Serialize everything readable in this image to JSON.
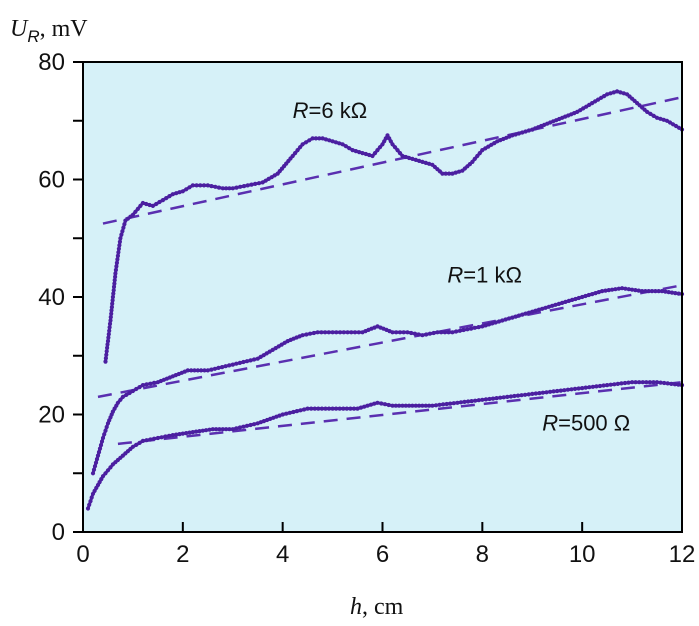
{
  "chart_data": {
    "type": "line",
    "xlabel": {
      "italic": "h",
      "rest": ", cm"
    },
    "ylabel": {
      "italic": "U",
      "sub": "R",
      "rest": ", mV"
    },
    "xlim": [
      0,
      12
    ],
    "ylim": [
      0,
      80
    ],
    "xticks": [
      0,
      2,
      4,
      6,
      8,
      10,
      12
    ],
    "yticks": [
      0,
      20,
      40,
      60,
      80
    ],
    "grid": false,
    "background": "#d6f1f8",
    "series_color": "#4b1fa0",
    "fit_color": "#5a2fb0",
    "series": [
      {
        "name": "R=6 kΩ",
        "label_parts": {
          "italic": "R",
          "rest": "=6 kΩ"
        },
        "label_at": {
          "x": 4.2,
          "y": 70.5
        },
        "x": [
          0.45,
          0.55,
          0.65,
          0.75,
          0.85,
          1.0,
          1.2,
          1.4,
          1.6,
          1.8,
          2.0,
          2.2,
          2.5,
          2.8,
          3.0,
          3.3,
          3.6,
          3.9,
          4.2,
          4.4,
          4.6,
          4.8,
          5.0,
          5.2,
          5.4,
          5.6,
          5.8,
          6.0,
          6.1,
          6.2,
          6.4,
          6.6,
          6.8,
          7.0,
          7.2,
          7.4,
          7.6,
          7.8,
          8.0,
          8.3,
          8.6,
          9.0,
          9.3,
          9.6,
          9.9,
          10.2,
          10.5,
          10.7,
          10.9,
          11.1,
          11.3,
          11.5,
          11.7,
          12.0
        ],
        "y": [
          29,
          36,
          44,
          50,
          53,
          54,
          56,
          55.5,
          56.5,
          57.5,
          58,
          59,
          59,
          58.5,
          58.5,
          59,
          59.5,
          61,
          64,
          66,
          67,
          67,
          66.5,
          66,
          65,
          64.5,
          64,
          66,
          67.5,
          66,
          64,
          63.5,
          63,
          62.5,
          61,
          61,
          61.5,
          63,
          65,
          66.5,
          67.5,
          68.5,
          69.5,
          70.5,
          71.5,
          73,
          74.5,
          75,
          74.5,
          73,
          71.5,
          70.5,
          70,
          68.5
        ]
      },
      {
        "name": "R=1 kΩ",
        "label_parts": {
          "italic": "R",
          "rest": "=1 kΩ"
        },
        "label_at": {
          "x": 7.3,
          "y": 42.5
        },
        "x": [
          0.2,
          0.3,
          0.4,
          0.5,
          0.6,
          0.7,
          0.8,
          1.0,
          1.2,
          1.5,
          1.8,
          2.1,
          2.5,
          3.0,
          3.5,
          3.8,
          4.1,
          4.4,
          4.7,
          5.0,
          5.3,
          5.6,
          5.9,
          6.2,
          6.5,
          6.8,
          7.1,
          7.4,
          7.7,
          8.0,
          8.4,
          8.8,
          9.2,
          9.6,
          10.0,
          10.4,
          10.8,
          11.2,
          11.6,
          12.0
        ],
        "y": [
          10,
          13,
          16,
          18.5,
          20.5,
          22,
          23,
          24,
          25,
          25.5,
          26.5,
          27.5,
          27.5,
          28.5,
          29.5,
          31,
          32.5,
          33.5,
          34,
          34,
          34,
          34,
          35,
          34,
          34,
          33.5,
          34,
          34,
          34.5,
          35,
          36,
          37,
          38,
          39,
          40,
          41,
          41.5,
          41,
          41,
          40.5
        ]
      },
      {
        "name": "R=500 Ω",
        "label_parts": {
          "italic": "R",
          "rest": "=500 Ω"
        },
        "label_at": {
          "x": 9.2,
          "y": 17.3
        },
        "x": [
          0.1,
          0.2,
          0.3,
          0.4,
          0.5,
          0.6,
          0.8,
          1.0,
          1.2,
          1.5,
          1.8,
          2.2,
          2.6,
          3.0,
          3.5,
          4.0,
          4.5,
          5.0,
          5.5,
          5.9,
          6.2,
          6.6,
          7.0,
          7.5,
          8.0,
          8.5,
          9.0,
          9.5,
          10.0,
          10.5,
          11.0,
          11.5,
          12.0
        ],
        "y": [
          4,
          6.5,
          8,
          9.5,
          10.5,
          11.5,
          13,
          14.5,
          15.5,
          16,
          16.5,
          17,
          17.5,
          17.5,
          18.5,
          20,
          21,
          21,
          21,
          22,
          21.5,
          21.5,
          21.5,
          22,
          22.5,
          23,
          23.5,
          24,
          24.5,
          25,
          25.5,
          25.5,
          25
        ]
      }
    ],
    "fits": [
      {
        "series": "R=6 kΩ",
        "x": [
          0.4,
          12.0
        ],
        "y": [
          52.5,
          74
        ]
      },
      {
        "series": "R=1 kΩ",
        "x": [
          0.3,
          12.0
        ],
        "y": [
          23,
          42
        ]
      },
      {
        "series": "R=500 Ω",
        "x": [
          0.7,
          12.0
        ],
        "y": [
          15,
          25.5
        ]
      }
    ]
  }
}
